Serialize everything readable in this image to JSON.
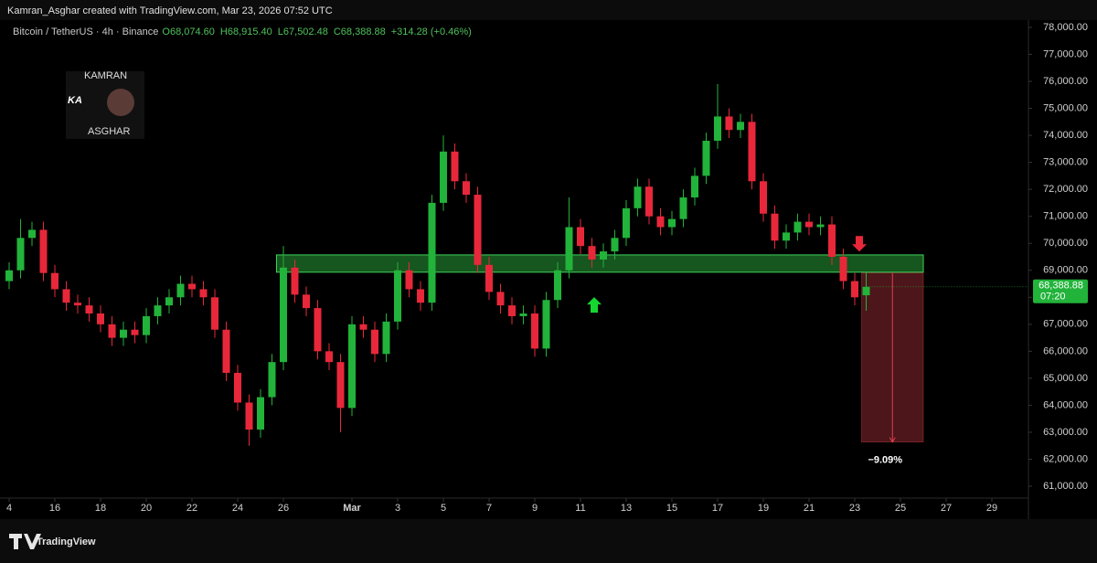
{
  "chart_data": {
    "type": "candlestick",
    "credit": "Kamran_Asghar created with TradingView.com, Mar 23, 2026 07:52 UTC",
    "symbol": "Bitcoin / TetherUS · 4h · Binance",
    "legend_values": [
      "O68,074.60",
      "H68,915.40",
      "L67,502.48",
      "C68,388.88",
      "+314.28 (+0.46%)"
    ],
    "logo": {
      "top": "KAMRAN",
      "mark": "KA",
      "bottom": "ASGHAR"
    },
    "footer": "TradingView",
    "last_price_label": "68,388.88",
    "countdown": "07:20",
    "up_color": "#22b33a",
    "down_color": "#e8283a",
    "grid": false,
    "xlim": [
      13.6,
      58.6
    ],
    "xticks": [
      {
        "value": 14,
        "label": "4"
      },
      {
        "value": 16,
        "label": "16"
      },
      {
        "value": 18,
        "label": "18"
      },
      {
        "value": 20,
        "label": "20"
      },
      {
        "value": 22,
        "label": "22"
      },
      {
        "value": 24,
        "label": "24"
      },
      {
        "value": 26,
        "label": "26"
      },
      {
        "value": 29,
        "label": "Mar"
      },
      {
        "value": 31,
        "label": "3"
      },
      {
        "value": 33,
        "label": "5"
      },
      {
        "value": 35,
        "label": "7"
      },
      {
        "value": 37,
        "label": "9"
      },
      {
        "value": 39,
        "label": "11"
      },
      {
        "value": 41,
        "label": "13"
      },
      {
        "value": 43,
        "label": "15"
      },
      {
        "value": 45,
        "label": "17"
      },
      {
        "value": 47,
        "label": "19"
      },
      {
        "value": 49,
        "label": "21"
      },
      {
        "value": 51,
        "label": "23"
      },
      {
        "value": 53,
        "label": "25"
      },
      {
        "value": 55,
        "label": "27"
      },
      {
        "value": 57,
        "label": "29"
      }
    ],
    "ylim": [
      60560,
      78270
    ],
    "yticks": [
      {
        "value": 61000,
        "label": "61,000.00"
      },
      {
        "value": 62000,
        "label": "62,000.00"
      },
      {
        "value": 63000,
        "label": "63,000.00"
      },
      {
        "value": 64000,
        "label": "64,000.00"
      },
      {
        "value": 65000,
        "label": "65,000.00"
      },
      {
        "value": 66000,
        "label": "66,000.00"
      },
      {
        "value": 67000,
        "label": "67,000.00"
      },
      {
        "value": 68000,
        "label": "68,000.00"
      },
      {
        "value": 69000,
        "label": "69,000.00"
      },
      {
        "value": 70000,
        "label": "70,000.00"
      },
      {
        "value": 71000,
        "label": "71,000.00"
      },
      {
        "value": 72000,
        "label": "72,000.00"
      },
      {
        "value": 73000,
        "label": "73,000.00"
      },
      {
        "value": 74000,
        "label": "74,000.00"
      },
      {
        "value": 75000,
        "label": "75,000.00"
      },
      {
        "value": 76000,
        "label": "76,000.00"
      },
      {
        "value": 77000,
        "label": "77,000.00"
      },
      {
        "value": 78000,
        "label": "78,000.00"
      }
    ],
    "x": [
      14.0,
      14.5,
      15.0,
      15.5,
      16.0,
      16.5,
      17.0,
      17.5,
      18.0,
      18.5,
      19.0,
      19.5,
      20.0,
      20.5,
      21.0,
      21.5,
      22.0,
      22.5,
      23.0,
      23.5,
      24.0,
      24.5,
      25.0,
      25.5,
      26.0,
      26.5,
      27.0,
      27.5,
      28.0,
      28.5,
      29.0,
      29.5,
      30.0,
      30.5,
      31.0,
      31.5,
      32.0,
      32.5,
      33.0,
      33.5,
      34.0,
      34.5,
      35.0,
      35.5,
      36.0,
      36.5,
      37.0,
      37.5,
      38.0,
      38.5,
      39.0,
      39.5,
      40.0,
      40.5,
      41.0,
      41.5,
      42.0,
      42.5,
      43.0,
      43.5,
      44.0,
      44.5,
      45.0,
      45.5,
      46.0,
      46.5,
      47.0,
      47.5,
      48.0,
      48.5,
      49.0,
      49.5,
      50.0,
      50.5,
      51.0,
      51.5
    ],
    "open": [
      68600,
      69000,
      70200,
      70500,
      68900,
      68300,
      67800,
      67700,
      67400,
      67000,
      66500,
      66800,
      66600,
      67300,
      67700,
      68000,
      68500,
      68300,
      68000,
      66800,
      65200,
      64100,
      63100,
      64300,
      65600,
      69100,
      68100,
      67600,
      66000,
      65600,
      63900,
      67000,
      66800,
      65900,
      67100,
      69000,
      68300,
      67800,
      71500,
      73400,
      72300,
      71800,
      69200,
      68200,
      67700,
      67300,
      67400,
      66100,
      67900,
      69000,
      70600,
      69900,
      69400,
      69700,
      70200,
      71300,
      72100,
      71000,
      70600,
      70900,
      71700,
      72500,
      73800,
      74700,
      74200,
      74500,
      72300,
      71100,
      70100,
      70400,
      70800,
      70600,
      70700,
      69500,
      68600,
      68074.6
    ],
    "high": [
      69300,
      70900,
      70800,
      70800,
      69200,
      68600,
      68100,
      68000,
      67700,
      67300,
      67100,
      67100,
      67600,
      68000,
      68300,
      68800,
      68800,
      68600,
      68300,
      67100,
      65500,
      64400,
      64600,
      65900,
      69900,
      69400,
      68400,
      67900,
      66300,
      65900,
      67300,
      67300,
      67100,
      67400,
      69300,
      69300,
      68600,
      71800,
      74000,
      73700,
      72600,
      72100,
      69500,
      68500,
      68000,
      67700,
      67700,
      68200,
      69300,
      71700,
      70900,
      70200,
      70000,
      70500,
      71600,
      72400,
      72400,
      71300,
      71200,
      72000,
      72800,
      74100,
      75900,
      75000,
      74800,
      74800,
      72600,
      71400,
      70700,
      71100,
      71100,
      71000,
      71000,
      69800,
      68900,
      68915.4
    ],
    "low": [
      68300,
      68700,
      69900,
      68600,
      68000,
      67500,
      67400,
      67100,
      66700,
      66200,
      66200,
      66300,
      66300,
      67000,
      67400,
      67700,
      68000,
      67700,
      66500,
      64900,
      63800,
      62500,
      62800,
      64000,
      65300,
      67800,
      67300,
      65700,
      65300,
      63000,
      63600,
      66500,
      65600,
      65600,
      66800,
      68000,
      67500,
      67500,
      71200,
      72000,
      71500,
      68900,
      67900,
      67400,
      67000,
      67000,
      65800,
      65800,
      67600,
      68700,
      69600,
      69100,
      69100,
      69400,
      69900,
      71000,
      70700,
      70300,
      70300,
      70600,
      71400,
      72200,
      73500,
      73900,
      73900,
      72000,
      70800,
      69800,
      69800,
      70100,
      70300,
      70300,
      69200,
      68300,
      67700,
      67502.48
    ],
    "close": [
      69000,
      70200,
      70500,
      68900,
      68300,
      67800,
      67700,
      67400,
      67000,
      66500,
      66800,
      66600,
      67300,
      67700,
      68000,
      68500,
      68300,
      68000,
      66800,
      65200,
      64100,
      63100,
      64300,
      65600,
      69100,
      68100,
      67600,
      66000,
      65600,
      63900,
      67000,
      66800,
      65900,
      67100,
      69000,
      68300,
      67800,
      71500,
      73400,
      72300,
      71800,
      69200,
      68200,
      67700,
      67300,
      67400,
      66100,
      67900,
      69000,
      70600,
      69900,
      69400,
      69700,
      70200,
      71300,
      72100,
      71000,
      70600,
      70900,
      71700,
      72500,
      73800,
      74700,
      74200,
      74500,
      72300,
      71100,
      70100,
      70400,
      70800,
      70600,
      70700,
      69500,
      68600,
      68000,
      68388.88
    ],
    "zone": {
      "x": [
        25.7,
        54.0
      ],
      "y": [
        68930,
        69570
      ],
      "color": "#1f7a2c"
    },
    "short_position": {
      "x": [
        51.3,
        54.0
      ],
      "entry": 68900,
      "target": 62637,
      "label": "−9.09%",
      "color": "#5a1a1f"
    },
    "markers": [
      {
        "x": 39.6,
        "y": 67700,
        "direction": "up",
        "color": "#16d630"
      },
      {
        "x": 51.2,
        "y": 70000,
        "direction": "down",
        "color": "#e8283a"
      }
    ]
  }
}
